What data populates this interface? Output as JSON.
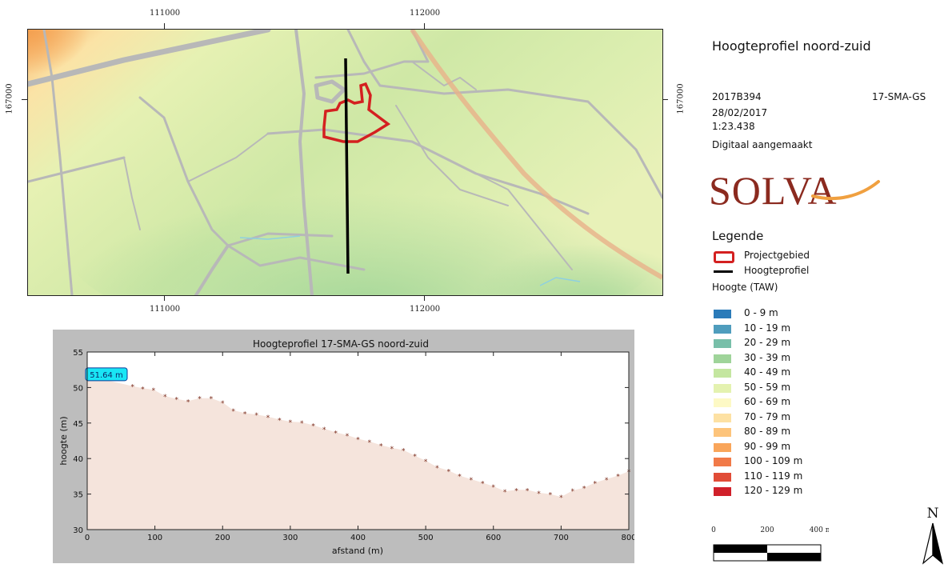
{
  "map": {
    "x_ticks": [
      "111000",
      "112000"
    ],
    "y_ticks": [
      "167000"
    ]
  },
  "panel": {
    "title": "Hoogteprofiel noord-zuid",
    "project_code": "2017B394",
    "site_code": "17-SMA-GS",
    "date": "28/02/2017",
    "scale_text": "1:23.438",
    "note": "Digitaal aangemaakt",
    "logo_text": "SOLVA"
  },
  "legend": {
    "title": "Legende",
    "items": [
      {
        "label": "Projectgebied",
        "icon": "red-outline-rect",
        "color": "#d42020"
      },
      {
        "label": "Hoogteprofiel",
        "icon": "black-line",
        "color": "#000000"
      }
    ],
    "hoogte_title": "Hoogte (TAW)",
    "classes": [
      {
        "label": "0 - 9 m",
        "color": "#2b7bb9"
      },
      {
        "label": "10 - 19 m",
        "color": "#4f9dbd"
      },
      {
        "label": "20 - 29 m",
        "color": "#78bfa9"
      },
      {
        "label": "30 - 39 m",
        "color": "#9fd49a"
      },
      {
        "label": "40 - 49 m",
        "color": "#c4e6a0"
      },
      {
        "label": "50 - 59 m",
        "color": "#e4f2b0"
      },
      {
        "label": "60 - 69 m",
        "color": "#fdf9c5"
      },
      {
        "label": "70 - 79 m",
        "color": "#fde1a3"
      },
      {
        "label": "80 - 89 m",
        "color": "#fdc47b"
      },
      {
        "label": "90 - 99 m",
        "color": "#f9a55a"
      },
      {
        "label": "100 - 109 m",
        "color": "#f17a48"
      },
      {
        "label": "110 - 119 m",
        "color": "#e14c37"
      },
      {
        "label": "120 - 129 m",
        "color": "#d0202a"
      }
    ]
  },
  "scalebar": {
    "labels": [
      "0",
      "200",
      "400 m"
    ]
  },
  "north_label": "N",
  "chart_data": {
    "type": "area",
    "title": "Hoogteprofiel 17-SMA-GS noord-zuid",
    "xlabel": "afstand (m)",
    "ylabel": "hoogte (m)",
    "xlim": [
      0,
      800
    ],
    "ylim": [
      30,
      55
    ],
    "x_ticks": [
      0,
      100,
      200,
      300,
      400,
      500,
      600,
      700,
      800
    ],
    "y_ticks": [
      30,
      35,
      40,
      45,
      50,
      55
    ],
    "annotation": "51.64 m",
    "fill_color": "#f5e4dc",
    "marker_color": "#7a2a1a",
    "series": [
      {
        "x": [
          0,
          67,
          82,
          98,
          115,
          132,
          149,
          166,
          183,
          200,
          216,
          233,
          250,
          267,
          284,
          300,
          317,
          334,
          350,
          367,
          384,
          400,
          417,
          434,
          450,
          467,
          484,
          500,
          517,
          534,
          550,
          567,
          584,
          600,
          617,
          634,
          650,
          667,
          684,
          700,
          717,
          734,
          750,
          767,
          784,
          800
        ],
        "y": [
          51.64,
          50.2,
          49.9,
          49.7,
          48.8,
          48.4,
          48.1,
          48.5,
          48.5,
          47.9,
          46.8,
          46.4,
          46.2,
          45.9,
          45.5,
          45.2,
          45.1,
          44.7,
          44.2,
          43.7,
          43.3,
          42.8,
          42.4,
          41.9,
          41.5,
          41.2,
          40.4,
          39.7,
          38.8,
          38.3,
          37.6,
          37.1,
          36.6,
          36.1,
          35.4,
          35.6,
          35.6,
          35.2,
          35.0,
          34.6,
          35.5,
          35.9,
          36.6,
          37.1,
          37.6,
          38.2
        ]
      }
    ]
  }
}
